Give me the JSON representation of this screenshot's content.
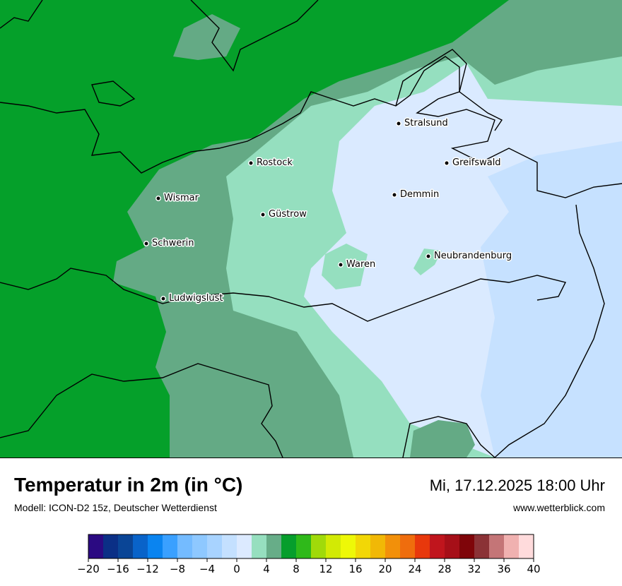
{
  "title": "Temperatur in 2m (in °C)",
  "subtitle": "Modell: ICON-D2 15z, Deutscher Wetterdienst",
  "datetime": "Mi, 17.12.2025 18:00 Uhr",
  "website": "www.wetterblick.com",
  "cities": [
    {
      "name": "Stralsund"
    },
    {
      "name": "Rostock"
    },
    {
      "name": "Greifswald"
    },
    {
      "name": "Demmin"
    },
    {
      "name": "Wismar"
    },
    {
      "name": "Güstrow"
    },
    {
      "name": "Schwerin"
    },
    {
      "name": "Neubrandenburg"
    },
    {
      "name": "Waren"
    },
    {
      "name": "Ludwigslust"
    }
  ],
  "legend": {
    "min": -20,
    "max": 40,
    "step": 2,
    "tick_labels": [
      "−20",
      "−16",
      "−12",
      "−8",
      "−4",
      "0",
      "4",
      "8",
      "12",
      "16",
      "20",
      "24",
      "28",
      "32",
      "36",
      "40"
    ],
    "colors": [
      "#2b0a82",
      "#0b2f86",
      "#0a4596",
      "#0963c9",
      "#0a84f0",
      "#3aa0ff",
      "#74bbff",
      "#8ec8ff",
      "#a8d3ff",
      "#c4e0ff",
      "#dceaff",
      "#96dfbf",
      "#67ad88",
      "#069e2c",
      "#2fb91a",
      "#a0da0a",
      "#d2ea05",
      "#eef807",
      "#f2d706",
      "#f1b806",
      "#f2900a",
      "#ef6d0d",
      "#e8380c",
      "#c0151d",
      "#a60f18",
      "#7f0509",
      "#8b3236",
      "#c47577",
      "#f0b1b0",
      "#ffdbdc"
    ]
  },
  "map_colors": {
    "green_dark": "#05a02a",
    "green_mid": "#64aa85",
    "green_light": "#95dfbf",
    "blue_pale": "#daeaff",
    "blue_light": "#c6e1ff"
  }
}
